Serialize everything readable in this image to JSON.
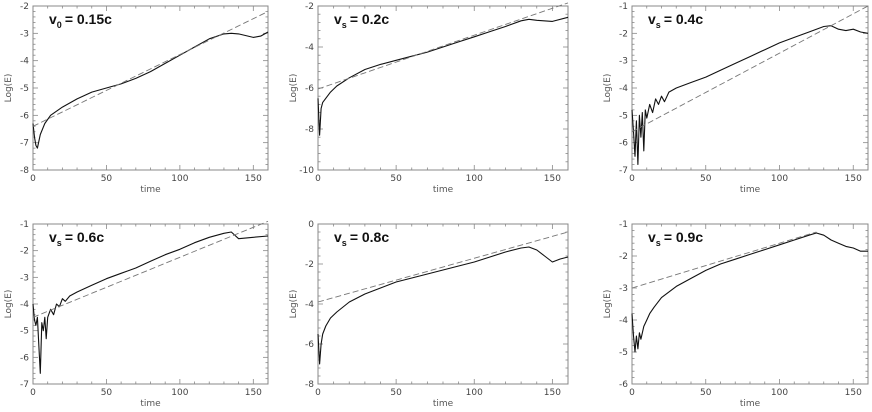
{
  "figure": {
    "panels_count": 6
  },
  "chart_data": [
    {
      "type": "line",
      "panel_label": {
        "main": "v",
        "sub": "0",
        "value": "= 0.15c"
      },
      "xlabel": "time",
      "ylabel": "Log(E)",
      "xlim": [
        0,
        160
      ],
      "ylim": [
        -8,
        -2
      ],
      "xticks": [
        0,
        50,
        100,
        150
      ],
      "yticks": [
        -8,
        -7,
        -6,
        -5,
        -4,
        -3,
        -2
      ],
      "series": [
        {
          "style": "solid",
          "x": [
            0,
            1,
            2,
            3,
            5,
            8,
            12,
            20,
            30,
            40,
            50,
            60,
            70,
            80,
            90,
            100,
            110,
            120,
            130,
            135,
            140,
            150,
            155,
            160
          ],
          "y": [
            -6.3,
            -6.8,
            -7.1,
            -7.2,
            -6.7,
            -6.3,
            -6.0,
            -5.7,
            -5.4,
            -5.15,
            -5.0,
            -4.85,
            -4.65,
            -4.4,
            -4.1,
            -3.8,
            -3.5,
            -3.2,
            -3.02,
            -3.0,
            -3.02,
            -3.15,
            -3.1,
            -2.95
          ]
        },
        {
          "style": "dashed",
          "x": [
            0,
            160
          ],
          "y": [
            -6.4,
            -2.2
          ]
        }
      ]
    },
    {
      "type": "line",
      "panel_label": {
        "main": "v",
        "sub": "s",
        "value": "= 0.2c"
      },
      "xlabel": "time",
      "ylabel": "Log(E)",
      "xlim": [
        0,
        160
      ],
      "ylim": [
        -10,
        -2
      ],
      "xticks": [
        0,
        50,
        100,
        150
      ],
      "yticks": [
        -10,
        -8,
        -6,
        -4,
        -2
      ],
      "series": [
        {
          "style": "solid",
          "x": [
            0,
            1,
            2,
            3,
            5,
            8,
            12,
            20,
            30,
            40,
            50,
            60,
            70,
            80,
            90,
            100,
            110,
            120,
            130,
            135,
            140,
            150,
            160
          ],
          "y": [
            -6.5,
            -8.3,
            -7.0,
            -6.7,
            -6.5,
            -6.2,
            -5.9,
            -5.5,
            -5.1,
            -4.85,
            -4.65,
            -4.45,
            -4.25,
            -4.0,
            -3.75,
            -3.5,
            -3.25,
            -3.0,
            -2.72,
            -2.65,
            -2.7,
            -2.75,
            -2.55
          ]
        },
        {
          "style": "dashed",
          "x": [
            0,
            160
          ],
          "y": [
            -6.05,
            -1.85
          ]
        }
      ]
    },
    {
      "type": "line",
      "panel_label": {
        "main": "v",
        "sub": "s",
        "value": "= 0.4c"
      },
      "xlabel": "time",
      "ylabel": "Log(E)",
      "xlim": [
        0,
        160
      ],
      "ylim": [
        -7,
        -1
      ],
      "xticks": [
        0,
        50,
        100,
        150
      ],
      "yticks": [
        -7,
        -6,
        -5,
        -4,
        -3,
        -2,
        -1
      ],
      "series": [
        {
          "style": "solid",
          "x": [
            0,
            1,
            2,
            3,
            4,
            5,
            6,
            7,
            8,
            9,
            10,
            12,
            14,
            16,
            18,
            20,
            22,
            25,
            30,
            40,
            50,
            60,
            70,
            80,
            90,
            100,
            110,
            120,
            130,
            135,
            140,
            145,
            150,
            155,
            160
          ],
          "y": [
            -4.8,
            -5.6,
            -6.5,
            -5.2,
            -6.8,
            -5.0,
            -5.8,
            -4.9,
            -6.3,
            -4.8,
            -5.1,
            -4.6,
            -4.9,
            -4.4,
            -4.6,
            -4.3,
            -4.5,
            -4.15,
            -4.0,
            -3.8,
            -3.6,
            -3.35,
            -3.1,
            -2.85,
            -2.6,
            -2.35,
            -2.15,
            -1.95,
            -1.75,
            -1.72,
            -1.85,
            -1.9,
            -1.85,
            -1.95,
            -2.0
          ]
        },
        {
          "style": "dashed",
          "x": [
            0,
            160
          ],
          "y": [
            -5.6,
            -1.0
          ]
        }
      ]
    },
    {
      "type": "line",
      "panel_label": {
        "main": "v",
        "sub": "s",
        "value": "= 0.6c"
      },
      "xlabel": "time",
      "ylabel": "Log(E)",
      "xlim": [
        0,
        160
      ],
      "ylim": [
        -7,
        -1
      ],
      "xticks": [
        0,
        50,
        100,
        150
      ],
      "yticks": [
        -7,
        -6,
        -5,
        -4,
        -3,
        -2,
        -1
      ],
      "series": [
        {
          "style": "solid",
          "x": [
            0,
            1,
            2,
            3,
            4,
            5,
            6,
            7,
            8,
            9,
            10,
            12,
            14,
            16,
            18,
            20,
            22,
            25,
            30,
            40,
            50,
            60,
            70,
            80,
            90,
            100,
            110,
            120,
            130,
            135,
            140,
            150,
            160
          ],
          "y": [
            -4.0,
            -4.6,
            -4.8,
            -4.5,
            -5.6,
            -6.6,
            -4.7,
            -5.0,
            -4.5,
            -5.3,
            -4.5,
            -4.2,
            -4.4,
            -4.0,
            -4.1,
            -3.8,
            -3.9,
            -3.7,
            -3.55,
            -3.3,
            -3.05,
            -2.85,
            -2.65,
            -2.4,
            -2.15,
            -1.95,
            -1.7,
            -1.5,
            -1.35,
            -1.3,
            -1.55,
            -1.5,
            -1.45
          ]
        },
        {
          "style": "dashed",
          "x": [
            0,
            160
          ],
          "y": [
            -4.5,
            -0.9
          ]
        }
      ]
    },
    {
      "type": "line",
      "panel_label": {
        "main": "v",
        "sub": "s",
        "value": "= 0.8c"
      },
      "xlabel": "time",
      "ylabel": "Log(E)",
      "xlim": [
        0,
        160
      ],
      "ylim": [
        -8,
        0
      ],
      "xticks": [
        0,
        50,
        100,
        150
      ],
      "yticks": [
        -8,
        -6,
        -4,
        -2,
        0
      ],
      "series": [
        {
          "style": "solid",
          "x": [
            0,
            1,
            2,
            3,
            5,
            8,
            12,
            20,
            30,
            40,
            50,
            60,
            70,
            80,
            90,
            100,
            110,
            120,
            130,
            135,
            140,
            145,
            150,
            155,
            160
          ],
          "y": [
            -5.5,
            -7.0,
            -6.0,
            -5.5,
            -5.1,
            -4.7,
            -4.4,
            -3.9,
            -3.5,
            -3.2,
            -2.9,
            -2.7,
            -2.5,
            -2.3,
            -2.1,
            -1.9,
            -1.65,
            -1.4,
            -1.2,
            -1.15,
            -1.3,
            -1.6,
            -1.9,
            -1.75,
            -1.65
          ]
        },
        {
          "style": "dashed",
          "x": [
            0,
            160
          ],
          "y": [
            -3.9,
            -0.4
          ]
        }
      ]
    },
    {
      "type": "line",
      "panel_label": {
        "main": "v",
        "sub": "s",
        "value": "= 0.9c"
      },
      "xlabel": "time",
      "ylabel": "Log(E)",
      "xlim": [
        0,
        160
      ],
      "ylim": [
        -6,
        -1
      ],
      "xticks": [
        0,
        50,
        100,
        150
      ],
      "yticks": [
        -6,
        -5,
        -4,
        -3,
        -2,
        -1
      ],
      "series": [
        {
          "style": "solid",
          "x": [
            0,
            1,
            2,
            3,
            4,
            5,
            6,
            8,
            10,
            12,
            15,
            20,
            30,
            40,
            50,
            60,
            70,
            80,
            90,
            100,
            110,
            120,
            125,
            130,
            135,
            140,
            145,
            150,
            155,
            160
          ],
          "y": [
            -3.8,
            -4.5,
            -5.0,
            -4.5,
            -4.9,
            -4.4,
            -4.6,
            -4.2,
            -4.0,
            -3.8,
            -3.6,
            -3.3,
            -2.95,
            -2.7,
            -2.45,
            -2.25,
            -2.1,
            -1.95,
            -1.8,
            -1.65,
            -1.5,
            -1.35,
            -1.28,
            -1.35,
            -1.5,
            -1.6,
            -1.7,
            -1.75,
            -1.85,
            -1.85
          ]
        },
        {
          "style": "dashed",
          "x": [
            0,
            125
          ],
          "y": [
            -3.0,
            -1.25
          ]
        }
      ]
    }
  ]
}
